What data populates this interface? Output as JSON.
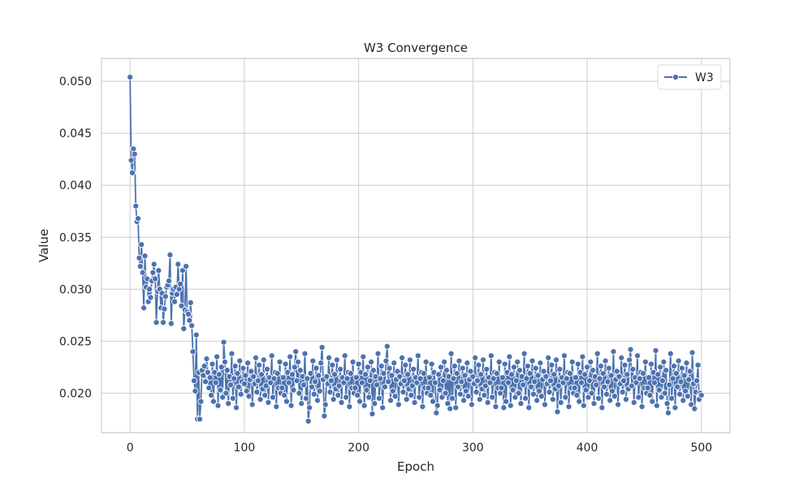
{
  "chart_data": {
    "type": "line",
    "title": "W3 Convergence",
    "xlabel": "Epoch",
    "ylabel": "Value",
    "xlim": [
      -25,
      525
    ],
    "ylim": [
      0.0162,
      0.0522
    ],
    "xticks": [
      0,
      100,
      200,
      300,
      400,
      500
    ],
    "yticks": [
      0.02,
      0.025,
      0.03,
      0.035,
      0.04,
      0.045,
      0.05
    ],
    "xtick_labels": [
      "0",
      "100",
      "200",
      "300",
      "400",
      "500"
    ],
    "ytick_labels": [
      "0.020",
      "0.025",
      "0.030",
      "0.035",
      "0.040",
      "0.045",
      "0.050"
    ],
    "grid": true,
    "legend_position": "top-right",
    "series": [
      {
        "name": "W3",
        "color": "#4c72b0",
        "marker": "circle",
        "segments": [
          {
            "x_start": 0,
            "x_end": 0,
            "values": [
              0.0504
            ]
          },
          {
            "x_start": 1,
            "x_end": 10,
            "values": [
              0.0424,
              0.0412,
              0.0435,
              0.043,
              0.038,
              0.0365,
              0.0368,
              0.033,
              0.0322,
              0.0343
            ]
          },
          {
            "x_start": 11,
            "x_end": 68,
            "values": [
              0.0316,
              0.0282,
              0.0332,
              0.0302,
              0.031,
              0.0288,
              0.03,
              0.0292,
              0.0308,
              0.0316,
              0.0324,
              0.031,
              0.0268,
              0.0298,
              0.0318,
              0.03,
              0.0282,
              0.0296,
              0.0268,
              0.0281,
              0.0293,
              0.0302,
              0.0304,
              0.0308,
              0.0333,
              0.0267,
              0.0296,
              0.03,
              0.0288,
              0.0302,
              0.0295,
              0.0324,
              0.03,
              0.0305,
              0.0284,
              0.0318,
              0.0262,
              0.028,
              0.0322,
              0.0278,
              0.0276,
              0.027,
              0.0287,
              0.0265,
              0.024,
              0.0212,
              0.0202,
              0.0256,
              0.0175,
              0.022,
              0.0175,
              0.0192,
              0.0222,
              0.0217,
              0.0226,
              0.0211,
              0.0233,
              0.022
            ]
          },
          {
            "x_start": 69,
            "x_end": 500,
            "pattern": [
              0.0205,
              0.0215,
              0.0198,
              0.0228,
              0.0192,
              0.022,
              0.021,
              0.0235,
              0.0188,
              0.0218,
              0.0203,
              0.0225,
              0.0196,
              0.0212,
              0.023,
              0.02,
              0.0222,
              0.019,
              0.0216,
              0.0208,
              0.0238,
              0.0195,
              0.0214,
              0.0226,
              0.0186,
              0.0219,
              0.0206,
              0.0231,
              0.0199,
              0.0211,
              0.0224,
              0.0193,
              0.0217,
              0.0202,
              0.0229,
              0.0197,
              0.0213,
              0.0221,
              0.0189,
              0.0216,
              0.0209,
              0.0234,
              0.0201,
              0.0212,
              0.0227,
              0.0194,
              0.0218,
              0.0204,
              0.0232,
              0.0198,
              0.0207,
              0.0223,
              0.0191,
              0.0215,
              0.021,
              0.0236,
              0.0196,
              0.0214,
              0.022,
              0.0187,
              0.0219,
              0.0205,
              0.023,
              0.02
            ],
            "overrides": {
              "82": 0.0249,
              "100": 0.0209,
              "145": 0.024,
              "156": 0.0173,
              "168": 0.0244,
              "170": 0.0178,
              "212": 0.018,
              "225": 0.0245,
              "268": 0.0181,
              "280": 0.0185,
              "327": 0.0186,
              "374": 0.0182,
              "423": 0.024,
              "438": 0.0242,
              "460": 0.0241,
              "471": 0.0181,
              "492": 0.0239,
              "494": 0.0185,
              "499": 0.02,
              "500": 0.0198
            }
          }
        ]
      }
    ]
  }
}
